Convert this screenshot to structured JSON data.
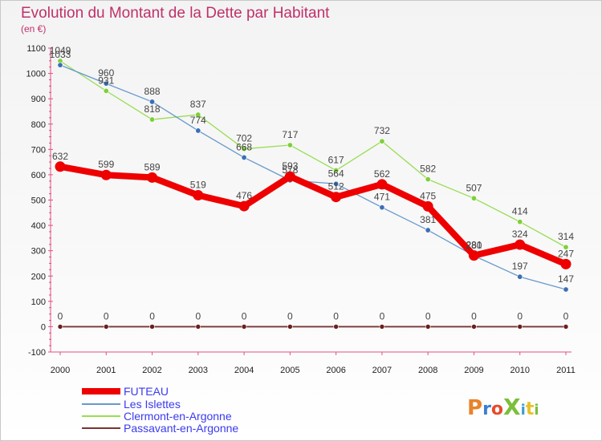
{
  "chart_data": {
    "type": "line",
    "title": "Evolution du Montant de la Dette par Habitant",
    "subtitle": "(en €)",
    "xlabel": "",
    "ylabel": "",
    "categories": [
      "2000",
      "2001",
      "2002",
      "2003",
      "2004",
      "2005",
      "2006",
      "2007",
      "2008",
      "2009",
      "2010",
      "2011"
    ],
    "ylim": [
      -100,
      1100
    ],
    "yticks": [
      -100,
      0,
      100,
      200,
      300,
      400,
      500,
      600,
      700,
      800,
      900,
      1000,
      1100
    ],
    "grid": false,
    "legend_position": "bottom-left",
    "series": [
      {
        "name": "FUTEAU",
        "color": "#ee0000",
        "values": [
          632,
          599,
          589,
          519,
          476,
          593,
          512,
          562,
          475,
          281,
          324,
          247
        ]
      },
      {
        "name": "Les Islettes",
        "color": "#6699cc",
        "values": [
          1033,
          960,
          888,
          774,
          668,
          578,
          564,
          471,
          381,
          280,
          197,
          147
        ]
      },
      {
        "name": "Clermont-en-Argonne",
        "color": "#99dd55",
        "values": [
          1049,
          931,
          818,
          837,
          702,
          717,
          617,
          732,
          582,
          507,
          414,
          314
        ]
      },
      {
        "name": "Passavant-en-Argonne",
        "color": "#7a3333",
        "values": [
          0,
          0,
          0,
          0,
          0,
          0,
          0,
          0,
          0,
          0,
          0,
          0
        ]
      }
    ]
  },
  "branding": {
    "logo_text": "ProXiti",
    "logo_colors": [
      "#e8832a",
      "#3b7fd0",
      "#e84a2a",
      "#7bbf3a",
      "#3b9fd0",
      "#e8c12a",
      "#7bbf3a"
    ]
  }
}
